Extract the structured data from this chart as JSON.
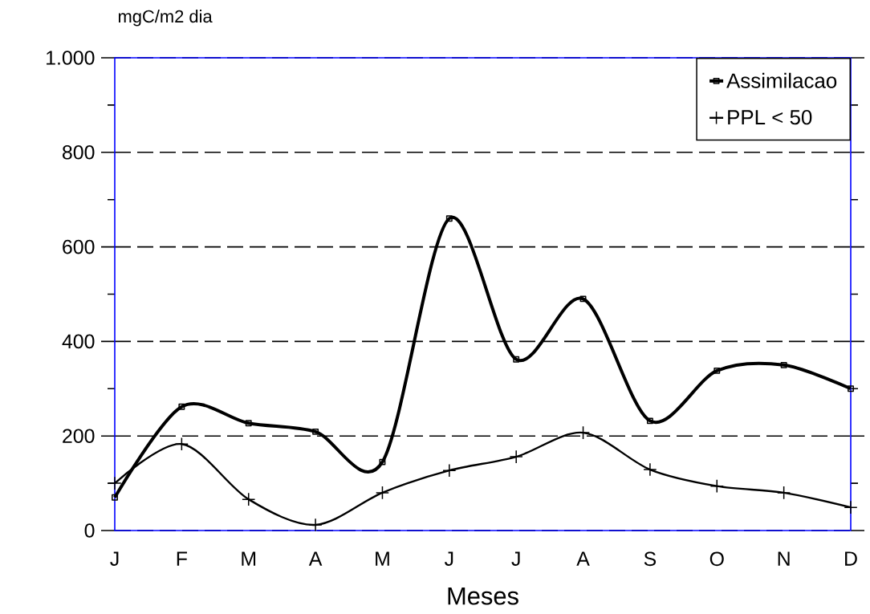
{
  "chart_data": {
    "type": "line",
    "xlabel": "Meses",
    "ylabel": "mgC/m2 dia",
    "categories": [
      "J",
      "F",
      "M",
      "A",
      "M",
      "J",
      "J",
      "A",
      "S",
      "O",
      "N",
      "D"
    ],
    "series": [
      {
        "name": "Assimilacao",
        "color": "#000000",
        "marker": "square",
        "values": [
          70,
          262,
          227,
          209,
          145,
          660,
          362,
          490,
          232,
          338,
          350,
          300
        ]
      },
      {
        "name": "PPL < 50",
        "color": "#000000",
        "marker": "cross",
        "values": [
          100,
          183,
          66,
          12,
          80,
          127,
          156,
          207,
          129,
          94,
          80,
          49
        ]
      }
    ],
    "ylim": [
      0,
      1000
    ],
    "yticks": [
      0,
      {
        "value": 100,
        "label": null
      },
      200,
      {
        "value": 300,
        "label": null
      },
      400,
      {
        "value": 500,
        "label": null
      },
      600,
      {
        "value": 700,
        "label": null
      },
      800,
      {
        "value": 900,
        "label": null
      },
      {
        "value": 1000,
        "label": "1.000"
      }
    ],
    "grid": "y",
    "legend": "top right",
    "line_style": "solid"
  }
}
